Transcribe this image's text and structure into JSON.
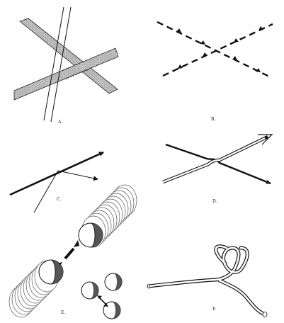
{
  "figure": {
    "panels": [
      {
        "id": "A",
        "label": "A."
      },
      {
        "id": "B",
        "label": "B."
      },
      {
        "id": "C",
        "label": "C."
      },
      {
        "id": "D",
        "label": "D."
      },
      {
        "id": "E",
        "label": "E."
      },
      {
        "id": "F",
        "label": "F."
      }
    ]
  },
  "colors": {
    "ink": "#111111",
    "band_fill": "#b9b9b9",
    "disc_edge": "#666666",
    "background": "#ffffff"
  }
}
